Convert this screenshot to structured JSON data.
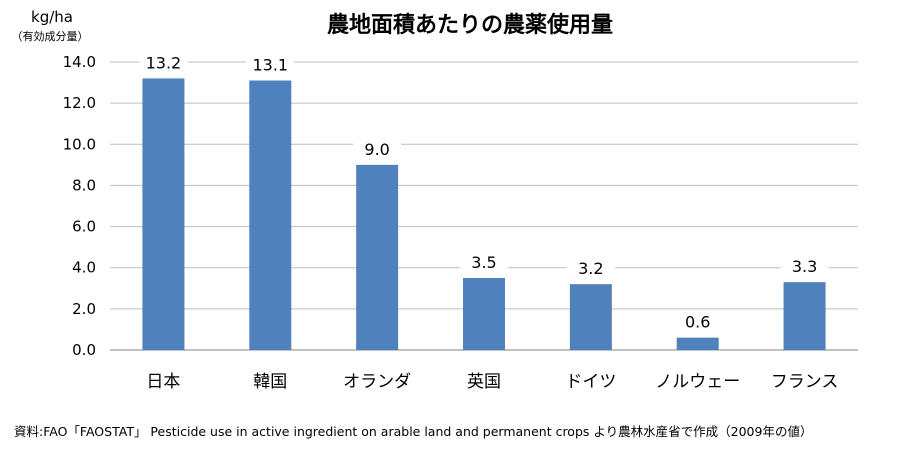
{
  "chart_data": {
    "type": "bar",
    "title": "農地面積あたりの農薬使用量",
    "ylabel": "kg/ha",
    "ylabel_sub": "（有効成分量）",
    "categories": [
      "日本",
      "韓国",
      "オランダ",
      "英国",
      "ドイツ",
      "ノルウェー",
      "フランス"
    ],
    "values": [
      13.2,
      13.1,
      9.0,
      3.5,
      3.2,
      0.6,
      3.3
    ],
    "data_labels": [
      "13.2",
      "13.1",
      "9.0",
      "3.5",
      "3.2",
      "0.6",
      "3.3"
    ],
    "yticks": [
      "0.0",
      "2.0",
      "4.0",
      "6.0",
      "8.0",
      "10.0",
      "12.0",
      "14.0"
    ],
    "ylim": [
      0,
      14
    ],
    "grid": true,
    "legend": "none",
    "bar_color": "#4f81bd"
  },
  "source": "資料:FAO「FAOSTAT」 Pesticide use in active ingredient on arable land and permanent crops より農林水産省で作成（2009年の値）"
}
